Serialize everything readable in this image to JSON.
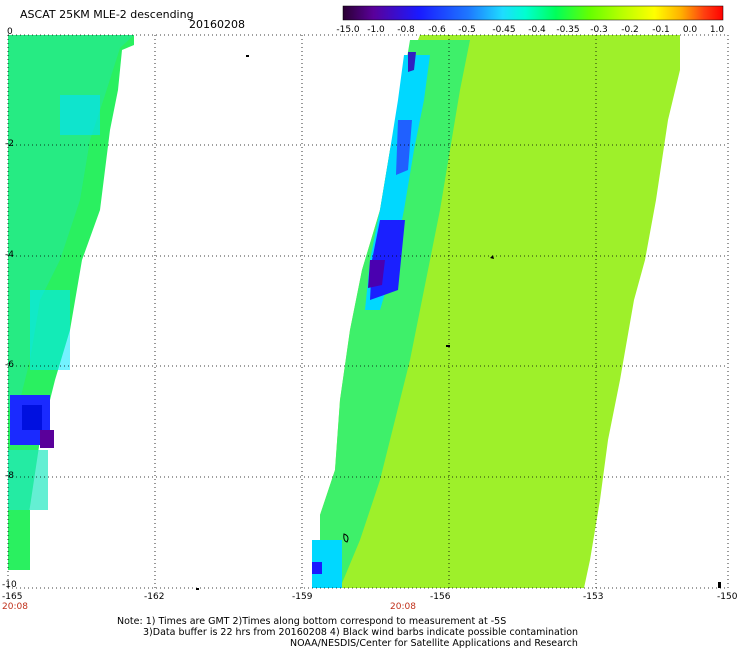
{
  "header": {
    "title": "ASCAT 25KM MLE-2 descending",
    "date": "20160208"
  },
  "colorbar": {
    "labels": [
      "-15.0",
      "-1.0",
      "-0.8",
      "-0.6",
      "-0.5",
      "-0.45",
      "-0.4",
      "-0.35",
      "-0.3",
      "-0.2",
      "-0.1",
      "0.0",
      "1.0"
    ],
    "colors": [
      "#2a0032",
      "#5a009a",
      "#1a1aff",
      "#1e78ff",
      "#1edcff",
      "#00ffd0",
      "#00ff5a",
      "#66ff00",
      "#b4ff00",
      "#ffff00",
      "#ffb000",
      "#ff4010",
      "#ff0000"
    ]
  },
  "map": {
    "lat_labels": [
      "0",
      "-2",
      "-4",
      "-6",
      "-8",
      "-10"
    ],
    "lon_labels": [
      "-165",
      "-162",
      "-159",
      "-156",
      "-153",
      "-150"
    ],
    "time_labels": [
      "20:08",
      "20:08"
    ]
  },
  "notes": {
    "line1": "Note: 1) Times are GMT 2)Times along bottom correspond to measurement at -5S",
    "line2": "3)Data buffer is 22 hrs from 20160208 4) Black wind barbs indicate possible contamination",
    "line3": "NOAA/NESDIS/Center for Satellite Applications and Research"
  }
}
